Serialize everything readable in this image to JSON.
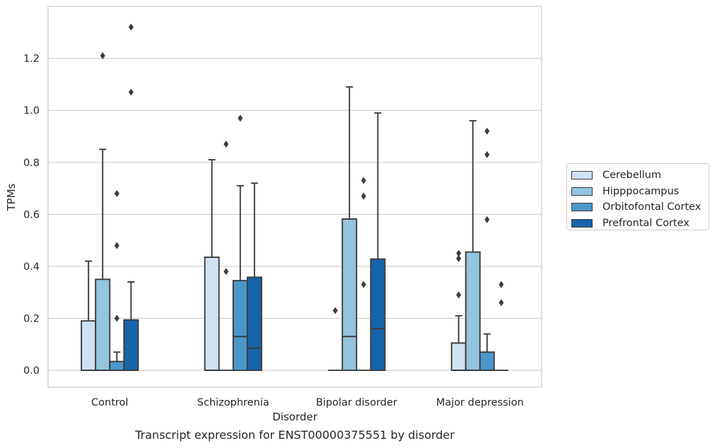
{
  "caption": "Transcript expression for ENST00000375551 by disorder",
  "chart_data": {
    "type": "box",
    "xlabel": "Disorder",
    "ylabel": "TPMs",
    "ylim": [
      -0.065,
      1.4
    ],
    "yticks": [
      "0.0",
      "0.2",
      "0.4",
      "0.6",
      "0.8",
      "1.0",
      "1.2"
    ],
    "grid": true,
    "legend_position": "right",
    "categories": [
      "Control",
      "Schizophrenia",
      "Bipolar disorder",
      "Major depression"
    ],
    "series": [
      {
        "name": "Cerebellum",
        "color": "#d0e1f2",
        "boxes": [
          {
            "whisker_low": 0,
            "q1": 0,
            "median": 0,
            "q3": 0.19,
            "whisker_high": 0.42,
            "outliers": []
          },
          {
            "whisker_low": 0,
            "q1": 0,
            "median": 0,
            "q3": 0.435,
            "whisker_high": 0.81,
            "outliers": []
          },
          {
            "whisker_low": 0,
            "q1": 0,
            "median": 0,
            "q3": 0,
            "whisker_high": 0,
            "outliers": [
              0.23
            ]
          },
          {
            "whisker_low": 0,
            "q1": 0,
            "median": 0,
            "q3": 0.105,
            "whisker_high": 0.21,
            "outliers": [
              0.29,
              0.43,
              0.45
            ]
          }
        ]
      },
      {
        "name": "Hipppocampus",
        "color": "#94c4df",
        "boxes": [
          {
            "whisker_low": 0,
            "q1": 0,
            "median": 0,
            "q3": 0.35,
            "whisker_high": 0.85,
            "outliers": [
              1.21
            ]
          },
          {
            "whisker_low": 0,
            "q1": 0,
            "median": 0,
            "q3": 0,
            "whisker_high": 0,
            "outliers": [
              0.38,
              0.87
            ]
          },
          {
            "whisker_low": 0,
            "q1": 0,
            "median": 0.13,
            "q3": 0.582,
            "whisker_high": 1.09,
            "outliers": []
          },
          {
            "whisker_low": 0,
            "q1": 0,
            "median": 0,
            "q3": 0.455,
            "whisker_high": 0.96,
            "outliers": []
          }
        ]
      },
      {
        "name": "Orbitofontal Cortex",
        "color": "#4a98c9",
        "boxes": [
          {
            "whisker_low": 0,
            "q1": 0,
            "median": 0,
            "q3": 0.034,
            "whisker_high": 0.07,
            "outliers": [
              0.2,
              0.48,
              0.68
            ]
          },
          {
            "whisker_low": 0,
            "q1": 0,
            "median": 0.13,
            "q3": 0.345,
            "whisker_high": 0.71,
            "outliers": [
              0.97
            ]
          },
          {
            "whisker_low": 0,
            "q1": 0,
            "median": 0,
            "q3": 0,
            "whisker_high": 0,
            "outliers": [
              0.33,
              0.67,
              0.73
            ]
          },
          {
            "whisker_low": 0,
            "q1": 0,
            "median": 0,
            "q3": 0.07,
            "whisker_high": 0.14,
            "outliers": [
              0.58,
              0.83,
              0.92
            ]
          }
        ]
      },
      {
        "name": "Prefrontal Cortex",
        "color": "#1764ab",
        "boxes": [
          {
            "whisker_low": 0,
            "q1": 0,
            "median": 0,
            "q3": 0.194,
            "whisker_high": 0.34,
            "outliers": [
              1.07,
              1.32
            ]
          },
          {
            "whisker_low": 0,
            "q1": 0,
            "median": 0.085,
            "q3": 0.358,
            "whisker_high": 0.72,
            "outliers": []
          },
          {
            "whisker_low": 0,
            "q1": 0,
            "median": 0.16,
            "q3": 0.428,
            "whisker_high": 0.99,
            "outliers": []
          },
          {
            "whisker_low": 0,
            "q1": 0,
            "median": 0,
            "q3": 0,
            "whisker_high": 0,
            "outliers": [
              0.26,
              0.33
            ]
          }
        ]
      }
    ]
  }
}
